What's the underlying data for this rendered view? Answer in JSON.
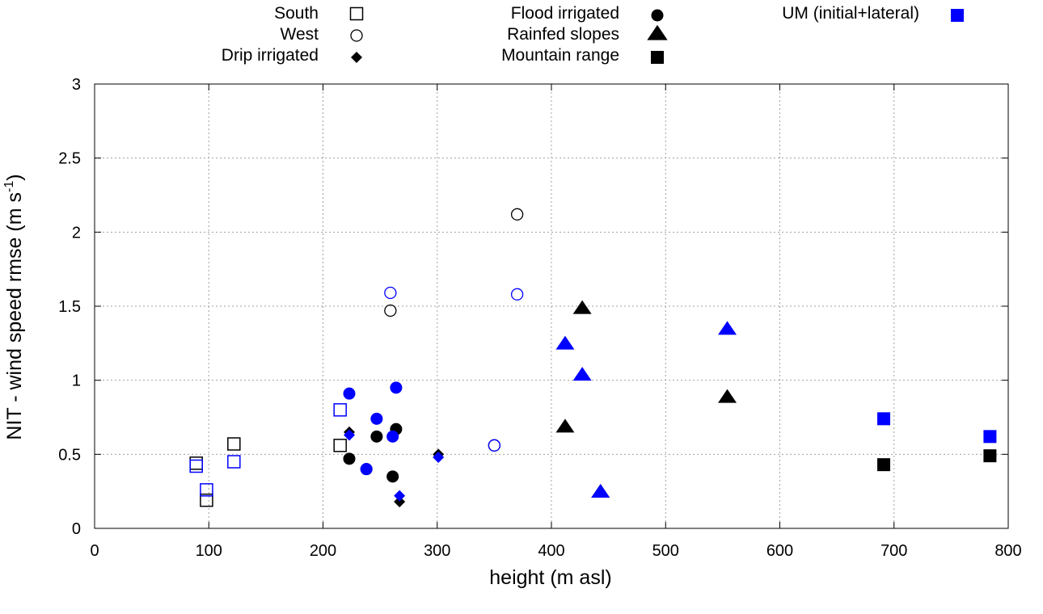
{
  "chart_data": {
    "type": "scatter",
    "title": "",
    "xlabel": "height (m asl)",
    "ylabel_main": "NIT - wind speed rmse (m s",
    "ylabel_sup": "-1",
    "ylabel_close": ")",
    "xlim": [
      0,
      800
    ],
    "ylim": [
      0,
      3
    ],
    "xticks": [
      "0",
      "100",
      "200",
      "300",
      "400",
      "500",
      "600",
      "700",
      "800"
    ],
    "xtick_values": [
      0,
      100,
      200,
      300,
      400,
      500,
      600,
      700,
      800
    ],
    "yticks": [
      "0",
      "0.5",
      "1",
      "1.5",
      "2",
      "2.5",
      "3"
    ],
    "ytick_values": [
      0,
      0.5,
      1,
      1.5,
      2,
      2.5,
      3
    ],
    "grid": true,
    "legend_placement": "top, outside plot",
    "colors": {
      "reference": "#000000",
      "um": "#0000ff",
      "grid": "#a0a0a0"
    },
    "legend": [
      {
        "label": "South",
        "marker": "square-open",
        "color": "#000000"
      },
      {
        "label": "West",
        "marker": "circle-open",
        "color": "#000000"
      },
      {
        "label": "Drip irrigated",
        "marker": "diamond-filled",
        "color": "#000000"
      },
      {
        "label": "Flood irrigated",
        "marker": "circle-filled",
        "color": "#000000"
      },
      {
        "label": "Rainfed slopes",
        "marker": "triangle-filled",
        "color": "#000000"
      },
      {
        "label": "Mountain range",
        "marker": "square-filled",
        "color": "#000000"
      },
      {
        "label": "UM (initial+lateral)",
        "marker": "square-filled",
        "color": "#0000ff"
      }
    ],
    "series": [
      {
        "name": "South",
        "marker": "square-open",
        "variant": "reference",
        "color": "#000000",
        "x": [
          89,
          98,
          122,
          215
        ],
        "y": [
          0.44,
          0.19,
          0.57,
          0.56
        ]
      },
      {
        "name": "West",
        "marker": "circle-open",
        "variant": "reference",
        "color": "#000000",
        "x": [
          259,
          370,
          350
        ],
        "y": [
          1.47,
          2.12,
          0.56
        ]
      },
      {
        "name": "Drip irrigated",
        "marker": "diamond-filled",
        "variant": "reference",
        "color": "#000000",
        "x": [
          223,
          267,
          301
        ],
        "y": [
          0.65,
          0.18,
          0.5
        ]
      },
      {
        "name": "Flood irrigated",
        "marker": "circle-filled",
        "variant": "reference",
        "color": "#000000",
        "x": [
          223,
          238,
          247,
          261,
          264
        ],
        "y": [
          0.47,
          0.4,
          0.62,
          0.35,
          0.67
        ]
      },
      {
        "name": "Rainfed slopes",
        "marker": "triangle-filled",
        "variant": "reference",
        "color": "#000000",
        "x": [
          412,
          427,
          443,
          554
        ],
        "y": [
          0.68,
          1.48,
          0.24,
          0.88
        ]
      },
      {
        "name": "Mountain range",
        "marker": "square-filled",
        "variant": "reference",
        "color": "#000000",
        "x": [
          691,
          784
        ],
        "y": [
          0.43,
          0.49
        ]
      },
      {
        "name": "South (UM initial+lateral)",
        "marker": "square-open",
        "variant": "um",
        "color": "#0000ff",
        "x": [
          89,
          98,
          122,
          215
        ],
        "y": [
          0.42,
          0.26,
          0.45,
          0.8
        ]
      },
      {
        "name": "West (UM initial+lateral)",
        "marker": "circle-open",
        "variant": "um",
        "color": "#0000ff",
        "x": [
          259,
          370,
          350
        ],
        "y": [
          1.59,
          1.58,
          0.56
        ]
      },
      {
        "name": "Drip irrigated (UM initial+lateral)",
        "marker": "diamond-filled",
        "variant": "um",
        "color": "#0000ff",
        "x": [
          223,
          267,
          301
        ],
        "y": [
          0.63,
          0.22,
          0.48
        ]
      },
      {
        "name": "Flood irrigated (UM initial+lateral)",
        "marker": "circle-filled",
        "variant": "um",
        "color": "#0000ff",
        "x": [
          223,
          238,
          247,
          261,
          264
        ],
        "y": [
          0.91,
          0.4,
          0.74,
          0.62,
          0.95
        ]
      },
      {
        "name": "Rainfed slopes (UM initial+lateral)",
        "marker": "triangle-filled",
        "variant": "um",
        "color": "#0000ff",
        "x": [
          412,
          427,
          443,
          554
        ],
        "y": [
          1.24,
          1.03,
          0.24,
          1.34
        ]
      },
      {
        "name": "Mountain range (UM initial+lateral)",
        "marker": "square-filled",
        "variant": "um",
        "color": "#0000ff",
        "x": [
          691,
          784
        ],
        "y": [
          0.74,
          0.62
        ]
      }
    ]
  }
}
